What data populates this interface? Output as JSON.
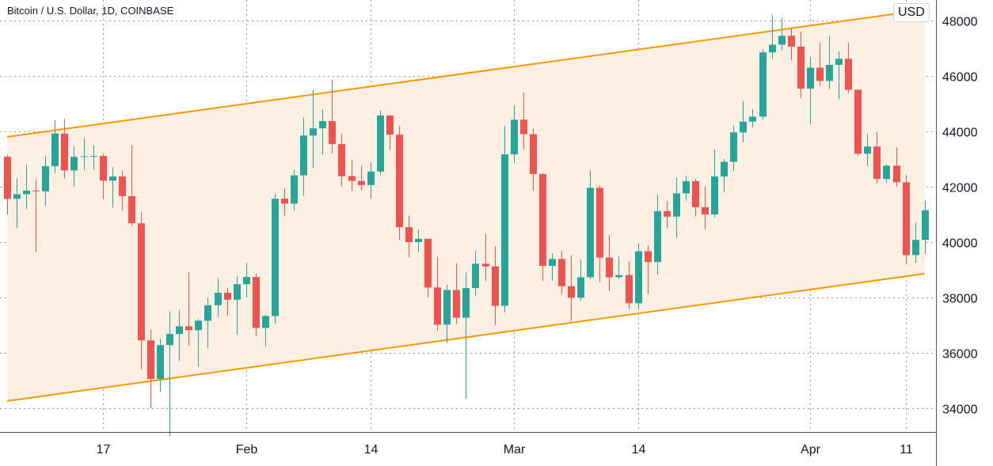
{
  "header": {
    "symbol_title": "Bitcoin / U.S. Dollar, 1D, COINBASE",
    "currency_button": "USD"
  },
  "colors": {
    "up": "#26a69a",
    "down": "#ef5350",
    "channel_line": "#ff9800",
    "channel_fill": "#fdf0e2",
    "grid": "#9598a1"
  },
  "chart_data": {
    "type": "candlestick",
    "title": "Bitcoin / U.S. Dollar, 1D, COINBASE",
    "ylim": [
      33000,
      49000
    ],
    "y_ticks": [
      34000,
      36000,
      38000,
      40000,
      42000,
      44000,
      46000,
      48000
    ],
    "x_ticks": [
      {
        "label": "17",
        "date": "Jan 17"
      },
      {
        "label": "Feb",
        "date": "Feb 1"
      },
      {
        "label": "14",
        "date": "Feb 14"
      },
      {
        "label": "Mar",
        "date": "Mar 1"
      },
      {
        "label": "14",
        "date": "Mar 14"
      },
      {
        "label": "Apr",
        "date": "Apr 1"
      },
      {
        "label": "11",
        "date": "Apr 11"
      }
    ],
    "grid": true,
    "channel": {
      "upper": {
        "start": {
          "date": "Jan 7",
          "price": 43800
        },
        "end": {
          "date": "Apr 13",
          "price": 48390
        }
      },
      "lower": {
        "start": {
          "date": "Jan 7",
          "price": 34260
        },
        "end": {
          "date": "Apr 13",
          "price": 38860
        }
      }
    },
    "columns": [
      "date",
      "open",
      "high",
      "low",
      "close"
    ],
    "candles": [
      [
        "Jan 7",
        43080,
        43150,
        41000,
        41560
      ],
      [
        "Jan 8",
        41560,
        42300,
        40500,
        41730
      ],
      [
        "Jan 9",
        41730,
        42800,
        41200,
        41860
      ],
      [
        "Jan 10",
        41860,
        42240,
        39650,
        41830
      ],
      [
        "Jan 11",
        41830,
        43100,
        41300,
        42740
      ],
      [
        "Jan 12",
        42740,
        44400,
        42500,
        43920
      ],
      [
        "Jan 13",
        43920,
        44450,
        42300,
        42590
      ],
      [
        "Jan 14",
        42590,
        43450,
        42000,
        43080
      ],
      [
        "Jan 15",
        43080,
        43750,
        42600,
        43100
      ],
      [
        "Jan 16",
        43100,
        43500,
        42600,
        43110
      ],
      [
        "Jan 17",
        43110,
        43180,
        41550,
        42220
      ],
      [
        "Jan 18",
        42220,
        42700,
        41250,
        42370
      ],
      [
        "Jan 19",
        42370,
        42580,
        41150,
        41660
      ],
      [
        "Jan 20",
        41660,
        43500,
        40600,
        40680
      ],
      [
        "Jan 21",
        40680,
        41100,
        35400,
        36450
      ],
      [
        "Jan 22",
        36450,
        36840,
        34000,
        35060
      ],
      [
        "Jan 23",
        35060,
        36500,
        34600,
        36280
      ],
      [
        "Jan 24",
        36280,
        37500,
        33000,
        36680
      ],
      [
        "Jan 25",
        36680,
        37550,
        35700,
        36960
      ],
      [
        "Jan 26",
        36960,
        38900,
        36250,
        36820
      ],
      [
        "Jan 27",
        36820,
        37220,
        35500,
        37160
      ],
      [
        "Jan 28",
        37160,
        38000,
        36160,
        37720
      ],
      [
        "Jan 29",
        37720,
        38700,
        37300,
        38170
      ],
      [
        "Jan 30",
        38170,
        38350,
        37350,
        37920
      ],
      [
        "Jan 31",
        37920,
        38750,
        36650,
        38480
      ],
      [
        "Feb 1",
        38480,
        39250,
        38000,
        38740
      ],
      [
        "Feb 2",
        38740,
        38860,
        36600,
        36900
      ],
      [
        "Feb 3",
        36900,
        37380,
        36250,
        37330
      ],
      [
        "Feb 4",
        37330,
        41750,
        37050,
        41570
      ],
      [
        "Feb 5",
        41570,
        41930,
        40950,
        41390
      ],
      [
        "Feb 6",
        41390,
        42620,
        41130,
        42410
      ],
      [
        "Feb 7",
        42410,
        44500,
        41680,
        43850
      ],
      [
        "Feb 8",
        43850,
        45500,
        42680,
        44110
      ],
      [
        "Feb 9",
        44110,
        44800,
        43150,
        44370
      ],
      [
        "Feb 10",
        44370,
        45850,
        43200,
        43540
      ],
      [
        "Feb 11",
        43540,
        43900,
        42000,
        42380
      ],
      [
        "Feb 12",
        42380,
        42980,
        41850,
        42210
      ],
      [
        "Feb 13",
        42210,
        42750,
        41880,
        42060
      ],
      [
        "Feb 14",
        42060,
        42870,
        41570,
        42550
      ],
      [
        "Feb 15",
        42550,
        44750,
        42440,
        44570
      ],
      [
        "Feb 16",
        44570,
        44580,
        43330,
        43880
      ],
      [
        "Feb 17",
        43880,
        44200,
        40070,
        40540
      ],
      [
        "Feb 18",
        40540,
        40950,
        39450,
        40000
      ],
      [
        "Feb 19",
        40000,
        40450,
        39650,
        40120
      ],
      [
        "Feb 20",
        40120,
        40120,
        38000,
        38360
      ],
      [
        "Feb 21",
        38360,
        39470,
        36800,
        37020
      ],
      [
        "Feb 22",
        37020,
        38460,
        36350,
        38270
      ],
      [
        "Feb 23",
        38270,
        39240,
        37050,
        37270
      ],
      [
        "Feb 24",
        37270,
        38900,
        34330,
        38340
      ],
      [
        "Feb 25",
        38340,
        39700,
        38050,
        39220
      ],
      [
        "Feb 26",
        39220,
        40300,
        38600,
        39120
      ],
      [
        "Feb 27",
        39120,
        39850,
        37000,
        37700
      ],
      [
        "Feb 28",
        37700,
        44200,
        37460,
        43170
      ],
      [
        "Mar 1",
        43170,
        44950,
        42850,
        44420
      ],
      [
        "Mar 2",
        44420,
        45400,
        43350,
        43900
      ],
      [
        "Mar 3",
        43900,
        44100,
        41850,
        42460
      ],
      [
        "Mar 4",
        42460,
        42500,
        38600,
        39140
      ],
      [
        "Mar 5",
        39140,
        39600,
        38600,
        39390
      ],
      [
        "Mar 6",
        39390,
        39680,
        38100,
        38410
      ],
      [
        "Mar 7",
        38410,
        39520,
        37150,
        37990
      ],
      [
        "Mar 8",
        37990,
        39370,
        37880,
        38730
      ],
      [
        "Mar 9",
        38730,
        42600,
        38650,
        41960
      ],
      [
        "Mar 10",
        41960,
        42050,
        38550,
        39440
      ],
      [
        "Mar 11",
        39440,
        40250,
        38230,
        38730
      ],
      [
        "Mar 12",
        38730,
        39480,
        38660,
        38810
      ],
      [
        "Mar 13",
        38810,
        39300,
        37590,
        37790
      ],
      [
        "Mar 14",
        37790,
        39950,
        37570,
        39670
      ],
      [
        "Mar 15",
        39670,
        39880,
        38120,
        39280
      ],
      [
        "Mar 16",
        39280,
        41720,
        38820,
        41120
      ],
      [
        "Mar 17",
        41120,
        41470,
        40500,
        40920
      ],
      [
        "Mar 18",
        40920,
        42330,
        40150,
        41760
      ],
      [
        "Mar 19",
        41760,
        42400,
        41500,
        42200
      ],
      [
        "Mar 20",
        42200,
        42300,
        40930,
        41260
      ],
      [
        "Mar 21",
        41260,
        42000,
        40480,
        41000
      ],
      [
        "Mar 22",
        41000,
        43350,
        40890,
        42370
      ],
      [
        "Mar 23",
        42370,
        43000,
        41800,
        42900
      ],
      [
        "Mar 24",
        42900,
        44220,
        42560,
        43960
      ],
      [
        "Mar 25",
        43960,
        45100,
        43600,
        44350
      ],
      [
        "Mar 26",
        44350,
        44800,
        44130,
        44530
      ],
      [
        "Mar 27",
        44530,
        46960,
        44420,
        46850
      ],
      [
        "Mar 28",
        46850,
        48200,
        46620,
        47130
      ],
      [
        "Mar 29",
        47130,
        48100,
        46930,
        47450
      ],
      [
        "Mar 30",
        47450,
        47700,
        46560,
        47060
      ],
      [
        "Mar 31",
        47060,
        47600,
        45200,
        45540
      ],
      [
        "Apr 1",
        45540,
        46700,
        44250,
        46300
      ],
      [
        "Apr 2",
        46300,
        47200,
        45650,
        45820
      ],
      [
        "Apr 3",
        45820,
        47450,
        45530,
        46400
      ],
      [
        "Apr 4",
        46400,
        46890,
        45150,
        46620
      ],
      [
        "Apr 5",
        46620,
        47200,
        45380,
        45500
      ],
      [
        "Apr 6",
        45500,
        45510,
        43120,
        43190
      ],
      [
        "Apr 7",
        43190,
        43900,
        42750,
        43450
      ],
      [
        "Apr 8",
        43450,
        43970,
        42110,
        42280
      ],
      [
        "Apr 9",
        42280,
        42800,
        42140,
        42760
      ],
      [
        "Apr 10",
        42760,
        43430,
        42000,
        42160
      ],
      [
        "Apr 11",
        42160,
        42420,
        39200,
        39530
      ],
      [
        "Apr 12",
        39530,
        40700,
        39250,
        40080
      ],
      [
        "Apr 13",
        40080,
        41500,
        39570,
        41150
      ]
    ]
  }
}
